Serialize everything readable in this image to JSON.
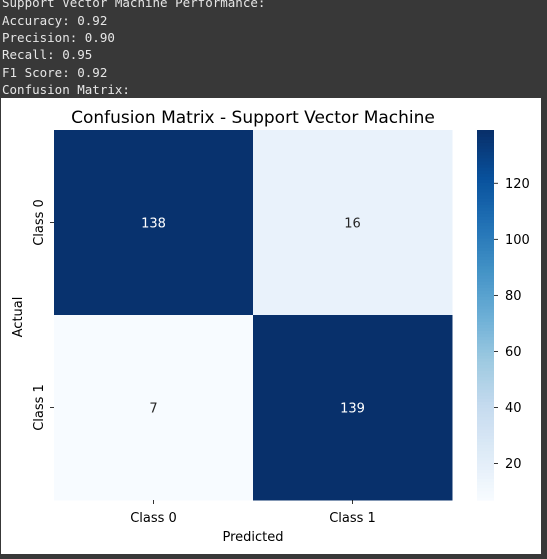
{
  "console": {
    "lines": [
      "Support Vector Machine Performance:",
      "Accuracy: 0.92",
      "Precision: 0.90",
      "Recall: 0.95",
      "F1 Score: 0.92",
      "Confusion Matrix:"
    ]
  },
  "chart_data": {
    "type": "heatmap",
    "title": "Confusion Matrix - Support Vector Machine",
    "xlabel": "Predicted",
    "ylabel": "Actual",
    "x_categories": [
      "Class 0",
      "Class 1"
    ],
    "y_categories": [
      "Class 0",
      "Class 1"
    ],
    "values": [
      [
        138,
        16
      ],
      [
        7,
        139
      ]
    ],
    "colormap": "Blues",
    "colorbar": {
      "range": [
        7,
        139
      ],
      "ticks": [
        20,
        40,
        60,
        80,
        100,
        120
      ],
      "tick_labels": [
        "20",
        "40",
        "60",
        "80",
        "100",
        "120"
      ]
    },
    "colors": {
      "low": "#f7fbff",
      "high": "#08306b",
      "text_on_dark": "#ffffff",
      "text_on_light": "#262626"
    }
  }
}
